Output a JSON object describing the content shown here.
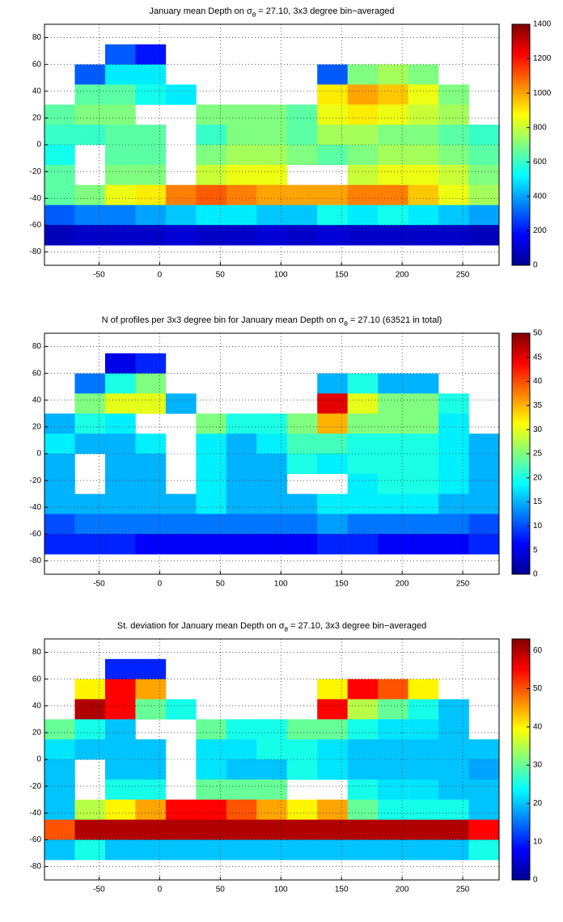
{
  "chart_data": [
    {
      "type": "heatmap",
      "title": [
        "January mean Depth on σ",
        "θ",
        " = 27.10, 3x3 degree bin−averaged"
      ],
      "xlim": [
        -95,
        280
      ],
      "ylim": [
        -90,
        90
      ],
      "xticks": [
        -50,
        0,
        50,
        100,
        150,
        200,
        250
      ],
      "yticks": [
        -80,
        -60,
        -40,
        -20,
        0,
        20,
        40,
        60,
        80
      ],
      "grid": true,
      "colormap": "jet",
      "clim": [
        0,
        1400
      ],
      "cticks": [
        0,
        200,
        400,
        600,
        800,
        1000,
        1200,
        1400
      ],
      "x_edges": [
        -95,
        -70,
        -45,
        -20,
        5,
        30,
        55,
        80,
        105,
        130,
        155,
        180,
        205,
        230,
        255,
        280
      ],
      "y_edges": [
        90,
        75,
        60,
        45,
        30,
        15,
        0,
        -15,
        -30,
        -45,
        -60,
        -75,
        -90
      ],
      "values": [
        [
          null,
          null,
          null,
          null,
          null,
          null,
          null,
          null,
          null,
          null,
          null,
          null,
          null,
          null,
          null
        ],
        [
          null,
          null,
          300,
          200,
          null,
          null,
          null,
          null,
          null,
          null,
          null,
          null,
          null,
          null,
          null
        ],
        [
          null,
          300,
          500,
          500,
          null,
          null,
          null,
          null,
          null,
          300,
          700,
          750,
          700,
          null,
          null
        ],
        [
          null,
          650,
          650,
          550,
          500,
          null,
          null,
          null,
          null,
          900,
          1000,
          950,
          850,
          700,
          null
        ],
        [
          650,
          700,
          700,
          null,
          null,
          700,
          700,
          700,
          650,
          850,
          900,
          850,
          800,
          750,
          null
        ],
        [
          600,
          600,
          650,
          650,
          null,
          600,
          700,
          700,
          650,
          750,
          750,
          700,
          700,
          650,
          600
        ],
        [
          550,
          null,
          650,
          650,
          null,
          700,
          750,
          750,
          700,
          650,
          700,
          750,
          750,
          700,
          650
        ],
        [
          650,
          null,
          700,
          700,
          null,
          800,
          850,
          850,
          null,
          null,
          800,
          850,
          850,
          800,
          700
        ],
        [
          650,
          700,
          850,
          900,
          1050,
          1100,
          1050,
          1000,
          1000,
          1000,
          1050,
          1050,
          950,
          850,
          750
        ],
        [
          300,
          350,
          350,
          400,
          450,
          500,
          500,
          450,
          450,
          550,
          500,
          550,
          500,
          450,
          400
        ],
        [
          80,
          100,
          100,
          100,
          120,
          100,
          100,
          120,
          100,
          120,
          100,
          100,
          100,
          100,
          80
        ],
        [
          null,
          null,
          null,
          null,
          null,
          null,
          null,
          null,
          null,
          null,
          null,
          null,
          null,
          null,
          null
        ]
      ]
    },
    {
      "type": "heatmap",
      "title": [
        "N of profiles per 3x3 degree bin for January mean Depth on σ",
        "θ",
        " = 27.10 (63521 in total)"
      ],
      "xlim": [
        -95,
        280
      ],
      "ylim": [
        -90,
        90
      ],
      "xticks": [
        -50,
        0,
        50,
        100,
        150,
        200,
        250
      ],
      "yticks": [
        -80,
        -60,
        -40,
        -20,
        0,
        20,
        40,
        60,
        80
      ],
      "grid": true,
      "colormap": "jet",
      "clim": [
        0,
        50
      ],
      "cticks": [
        0,
        5,
        10,
        15,
        20,
        25,
        30,
        35,
        40,
        45,
        50
      ],
      "x_edges": [
        -95,
        -70,
        -45,
        -20,
        5,
        30,
        55,
        80,
        105,
        130,
        155,
        180,
        205,
        230,
        255,
        280
      ],
      "y_edges": [
        90,
        75,
        60,
        45,
        30,
        15,
        0,
        -15,
        -30,
        -45,
        -60,
        -75,
        -90
      ],
      "values": [
        [
          null,
          null,
          null,
          null,
          null,
          null,
          null,
          null,
          null,
          null,
          null,
          null,
          null,
          null,
          null
        ],
        [
          null,
          null,
          5,
          8,
          null,
          null,
          null,
          null,
          null,
          null,
          null,
          null,
          null,
          null,
          null
        ],
        [
          null,
          12,
          20,
          25,
          null,
          null,
          null,
          null,
          null,
          15,
          20,
          15,
          15,
          null,
          null
        ],
        [
          null,
          25,
          30,
          30,
          15,
          null,
          null,
          null,
          null,
          45,
          30,
          25,
          25,
          20,
          null
        ],
        [
          15,
          20,
          18,
          null,
          null,
          25,
          20,
          20,
          25,
          35,
          25,
          25,
          25,
          18,
          null
        ],
        [
          18,
          15,
          15,
          18,
          null,
          18,
          15,
          18,
          22,
          22,
          20,
          20,
          20,
          18,
          15
        ],
        [
          15,
          null,
          15,
          15,
          null,
          18,
          15,
          15,
          20,
          18,
          20,
          20,
          20,
          18,
          15
        ],
        [
          15,
          null,
          15,
          15,
          null,
          18,
          15,
          15,
          null,
          null,
          18,
          20,
          20,
          18,
          15
        ],
        [
          15,
          15,
          15,
          15,
          15,
          18,
          15,
          15,
          15,
          18,
          18,
          18,
          18,
          15,
          15
        ],
        [
          10,
          12,
          12,
          12,
          12,
          12,
          12,
          12,
          12,
          14,
          12,
          12,
          12,
          12,
          10
        ],
        [
          8,
          8,
          8,
          6,
          6,
          6,
          6,
          6,
          6,
          8,
          8,
          6,
          6,
          6,
          8
        ],
        [
          null,
          null,
          null,
          null,
          null,
          null,
          null,
          null,
          null,
          null,
          null,
          null,
          null,
          null,
          null
        ]
      ]
    },
    {
      "type": "heatmap",
      "title": [
        "St. deviation for January mean Depth on σ",
        "θ",
        " = 27.10, 3x3 degree bin−averaged"
      ],
      "xlim": [
        -95,
        280
      ],
      "ylim": [
        -90,
        90
      ],
      "xticks": [
        -50,
        0,
        50,
        100,
        150,
        200,
        250
      ],
      "yticks": [
        -80,
        -60,
        -40,
        -20,
        0,
        20,
        40,
        60,
        80
      ],
      "grid": true,
      "colormap": "jet",
      "clim": [
        0,
        63
      ],
      "cticks": [
        0,
        10,
        20,
        30,
        40,
        50,
        60
      ],
      "x_edges": [
        -95,
        -70,
        -45,
        -20,
        5,
        30,
        55,
        80,
        105,
        130,
        155,
        180,
        205,
        230,
        255,
        280
      ],
      "y_edges": [
        90,
        75,
        60,
        45,
        30,
        15,
        0,
        -15,
        -30,
        -45,
        -60,
        -75,
        -90
      ],
      "values": [
        [
          null,
          null,
          null,
          null,
          null,
          null,
          null,
          null,
          null,
          null,
          null,
          null,
          null,
          null,
          null
        ],
        [
          null,
          null,
          10,
          10,
          null,
          null,
          null,
          null,
          null,
          null,
          null,
          null,
          null,
          null,
          null
        ],
        [
          null,
          40,
          55,
          45,
          null,
          null,
          null,
          null,
          null,
          40,
          55,
          50,
          40,
          null,
          null
        ],
        [
          null,
          60,
          55,
          30,
          25,
          null,
          null,
          null,
          null,
          55,
          35,
          30,
          25,
          20,
          null
        ],
        [
          30,
          25,
          20,
          null,
          null,
          30,
          25,
          25,
          30,
          30,
          25,
          22,
          22,
          20,
          null
        ],
        [
          22,
          20,
          20,
          20,
          null,
          22,
          22,
          25,
          25,
          22,
          20,
          20,
          20,
          20,
          20
        ],
        [
          20,
          null,
          20,
          20,
          null,
          22,
          20,
          20,
          25,
          22,
          20,
          20,
          20,
          20,
          18
        ],
        [
          20,
          null,
          25,
          25,
          null,
          30,
          30,
          30,
          null,
          null,
          25,
          22,
          22,
          20,
          20
        ],
        [
          20,
          35,
          40,
          45,
          55,
          55,
          50,
          45,
          40,
          45,
          30,
          25,
          25,
          25,
          20
        ],
        [
          50,
          60,
          60,
          60,
          60,
          60,
          60,
          60,
          60,
          60,
          60,
          60,
          60,
          60,
          55
        ],
        [
          20,
          25,
          20,
          20,
          20,
          20,
          20,
          20,
          20,
          20,
          20,
          20,
          20,
          20,
          25
        ],
        [
          null,
          null,
          null,
          null,
          null,
          null,
          null,
          null,
          null,
          null,
          null,
          null,
          null,
          null,
          null
        ]
      ]
    }
  ]
}
